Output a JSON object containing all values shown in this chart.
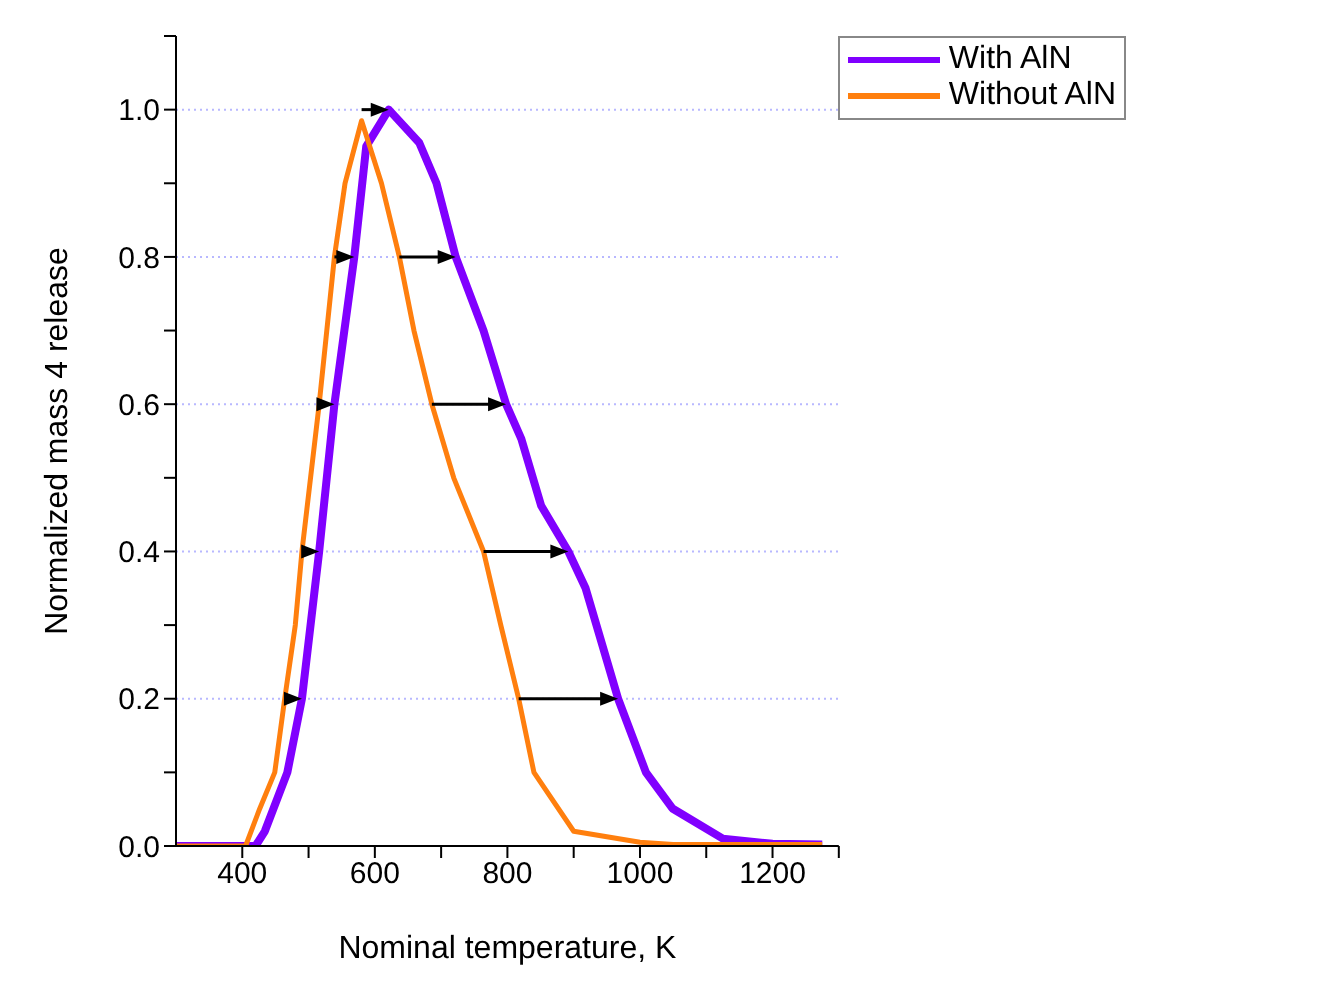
{
  "chart_data": {
    "type": "line",
    "xlabel": "Nominal temperature, K",
    "ylabel": "Normalized mass 4 release",
    "xlim": [
      300,
      1300
    ],
    "ylim": [
      0,
      1.1
    ],
    "xticks": [
      400,
      600,
      800,
      1000,
      1200,
      {
        "value": 500,
        "label": null
      },
      {
        "value": 700,
        "label": null
      },
      {
        "value": 900,
        "label": null
      },
      {
        "value": 1100,
        "label": null
      },
      {
        "value": 1300,
        "label": null
      }
    ],
    "yticks": [
      {
        "value": 0,
        "label": "0.0"
      },
      {
        "value": 0.2,
        "label": "0.2"
      },
      {
        "value": 0.4,
        "label": "0.4"
      },
      {
        "value": 0.6,
        "label": "0.6"
      },
      {
        "value": 0.8,
        "label": "0.8"
      },
      {
        "value": 1,
        "label": "1.0"
      },
      {
        "value": 0.1,
        "label": null
      },
      {
        "value": 0.3,
        "label": null
      },
      {
        "value": 0.5,
        "label": null
      },
      {
        "value": 0.7,
        "label": null
      },
      {
        "value": 0.9,
        "label": null
      },
      {
        "value": 1.1,
        "label": null
      }
    ],
    "grid": "y",
    "legend": "top right",
    "marker": "none",
    "line_style": "solid",
    "series": [
      {
        "name": "With AlN",
        "color": "#8000ff",
        "x": [
          300,
          420,
          434,
          468,
          490,
          516,
          539,
          569,
          587,
          621,
          667,
          693,
          722,
          764,
          798,
          821,
          851,
          892,
          918,
          967,
          1009,
          1049,
          1125,
          1200,
          1275
        ],
        "values": [
          0,
          0,
          0.02,
          0.1,
          0.2,
          0.4,
          0.6,
          0.8,
          0.95,
          1.0,
          0.955,
          0.9,
          0.8,
          0.7,
          0.6,
          0.553,
          0.462,
          0.4,
          0.35,
          0.2,
          0.1,
          0.051,
          0.01,
          0.003,
          0.002
        ]
      },
      {
        "name": "Without AlN",
        "color": "#ff7f0e",
        "x": [
          300,
          405,
          426,
          449,
          464,
          480,
          490,
          516,
          539,
          555,
          580,
          610,
          637,
          659,
          686,
          719,
          764,
          790,
          817,
          840,
          900,
          1000,
          1050,
          1275
        ],
        "values": [
          0,
          0,
          0.05,
          0.1,
          0.2,
          0.3,
          0.4,
          0.6,
          0.8,
          0.9,
          0.985,
          0.9,
          0.8,
          0.7,
          0.6,
          0.5,
          0.4,
          0.3,
          0.2,
          0.1,
          0.02,
          0.005,
          0.002,
          0.002
        ]
      }
    ]
  }
}
